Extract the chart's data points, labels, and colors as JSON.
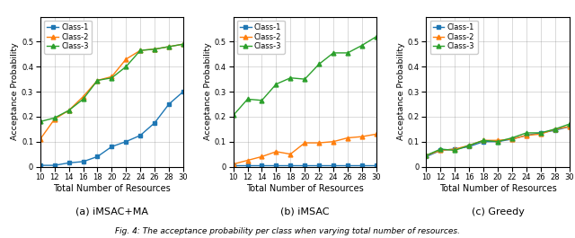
{
  "x": [
    10,
    12,
    14,
    16,
    18,
    20,
    22,
    24,
    26,
    28,
    30
  ],
  "subplot1": {
    "title": "(a) iMSAC+MA",
    "class1": [
      0.005,
      0.005,
      0.015,
      0.02,
      0.04,
      0.08,
      0.1,
      0.125,
      0.175,
      0.25,
      0.3
    ],
    "class2": [
      0.11,
      0.19,
      0.225,
      0.28,
      0.345,
      0.36,
      0.43,
      0.465,
      0.47,
      0.48,
      0.49
    ],
    "class3": [
      0.18,
      0.195,
      0.225,
      0.27,
      0.345,
      0.355,
      0.4,
      0.465,
      0.47,
      0.48,
      0.49
    ]
  },
  "subplot2": {
    "title": "(b) iMSAC",
    "class1": [
      0.005,
      0.005,
      0.005,
      0.005,
      0.005,
      0.005,
      0.005,
      0.005,
      0.005,
      0.005,
      0.005
    ],
    "class2": [
      0.01,
      0.025,
      0.04,
      0.06,
      0.05,
      0.095,
      0.095,
      0.1,
      0.115,
      0.12,
      0.13
    ],
    "class3": [
      0.205,
      0.27,
      0.265,
      0.33,
      0.355,
      0.35,
      0.41,
      0.455,
      0.455,
      0.485,
      0.52
    ]
  },
  "subplot3": {
    "title": "(c) Greedy",
    "class1": [
      0.04,
      0.065,
      0.07,
      0.08,
      0.1,
      0.1,
      0.11,
      0.125,
      0.135,
      0.145,
      0.16
    ],
    "class2": [
      0.045,
      0.065,
      0.07,
      0.085,
      0.105,
      0.105,
      0.11,
      0.125,
      0.13,
      0.15,
      0.16
    ],
    "class3": [
      0.045,
      0.07,
      0.065,
      0.085,
      0.105,
      0.1,
      0.115,
      0.135,
      0.135,
      0.15,
      0.17
    ]
  },
  "colors": {
    "class1": "#1f77b4",
    "class2": "#ff7f0e",
    "class3": "#2ca02c"
  },
  "markers": {
    "class1": "s",
    "class2": "^",
    "class3": "^"
  },
  "ylim": [
    0,
    0.6
  ],
  "yticks": [
    0.0,
    0.1,
    0.2,
    0.3,
    0.4,
    0.5
  ],
  "ylabel": "Acceptance Probability",
  "xlabel": "Total Number of Resources",
  "caption": "Fig. 4: The acceptance probability per class when varying total number of resources."
}
